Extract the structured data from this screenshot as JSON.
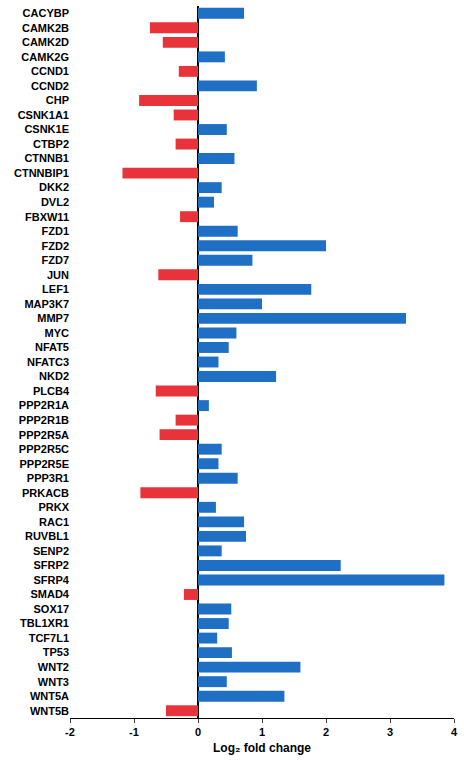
{
  "chart_data": {
    "type": "bar",
    "orientation": "horizontal",
    "x_label": "Log₂ fold change",
    "categories": [
      "CACYBP",
      "CAMK2B",
      "CAMK2D",
      "CAMK2G",
      "CCND1",
      "CCND2",
      "CHP",
      "CSNK1A1",
      "CSNK1E",
      "CTBP2",
      "CTNNB1",
      "CTNNBIP1",
      "DKK2",
      "DVL2",
      "FBXW11",
      "FZD1",
      "FZD2",
      "FZD7",
      "JUN",
      "LEF1",
      "MAP3K7",
      "MMP7",
      "MYC",
      "NFAT5",
      "NFATC3",
      "NKD2",
      "PLCB4",
      "PPP2R1A",
      "PPP2R1B",
      "PPP2R5A",
      "PPP2R5C",
      "PPP2R5E",
      "PPP3R1",
      "PRKACB",
      "PRKX",
      "RAC1",
      "RUVBL1",
      "SENP2",
      "SFRP2",
      "SFRP4",
      "SMAD4",
      "SOX17",
      "TBL1XR1",
      "TCF7L1",
      "TP53",
      "WNT2",
      "WNT3",
      "WNT5A",
      "WNT5B"
    ],
    "values": [
      0.72,
      -0.75,
      -0.55,
      0.42,
      -0.3,
      0.92,
      -0.92,
      -0.38,
      0.45,
      -0.35,
      0.57,
      -1.18,
      0.37,
      0.25,
      -0.28,
      0.62,
      2.0,
      0.85,
      -0.62,
      1.77,
      1.0,
      3.25,
      0.6,
      0.48,
      0.32,
      1.22,
      -0.66,
      0.17,
      -0.35,
      -0.6,
      0.37,
      0.32,
      0.62,
      -0.9,
      0.28,
      0.72,
      0.75,
      0.37,
      2.23,
      3.85,
      -0.22,
      0.52,
      0.48,
      0.3,
      0.53,
      1.6,
      0.45,
      1.35,
      -0.5
    ],
    "colors": [
      "#1f6fc5",
      "#e8333a",
      "#e8333a",
      "#1f6fc5",
      "#e8333a",
      "#1f6fc5",
      "#e8333a",
      "#e8333a",
      "#1f6fc5",
      "#e8333a",
      "#1f6fc5",
      "#e8333a",
      "#1f6fc5",
      "#1f6fc5",
      "#e8333a",
      "#1f6fc5",
      "#1f6fc5",
      "#1f6fc5",
      "#e8333a",
      "#1f6fc5",
      "#1f6fc5",
      "#1f6fc5",
      "#1f6fc5",
      "#1f6fc5",
      "#1f6fc5",
      "#1f6fc5",
      "#e8333a",
      "#1f6fc5",
      "#e8333a",
      "#e8333a",
      "#1f6fc5",
      "#1f6fc5",
      "#1f6fc5",
      "#e8333a",
      "#1f6fc5",
      "#1f6fc5",
      "#1f6fc5",
      "#1f6fc5",
      "#1f6fc5",
      "#1f6fc5",
      "#e8333a",
      "#1f6fc5",
      "#1f6fc5",
      "#1f6fc5",
      "#1f6fc5",
      "#1f6fc5",
      "#1f6fc5",
      "#1f6fc5",
      "#e8333a"
    ],
    "xlim": [
      -2,
      4
    ],
    "xticks": [
      -2,
      -1,
      0,
      1,
      2,
      3,
      4
    ],
    "grid": false
  }
}
